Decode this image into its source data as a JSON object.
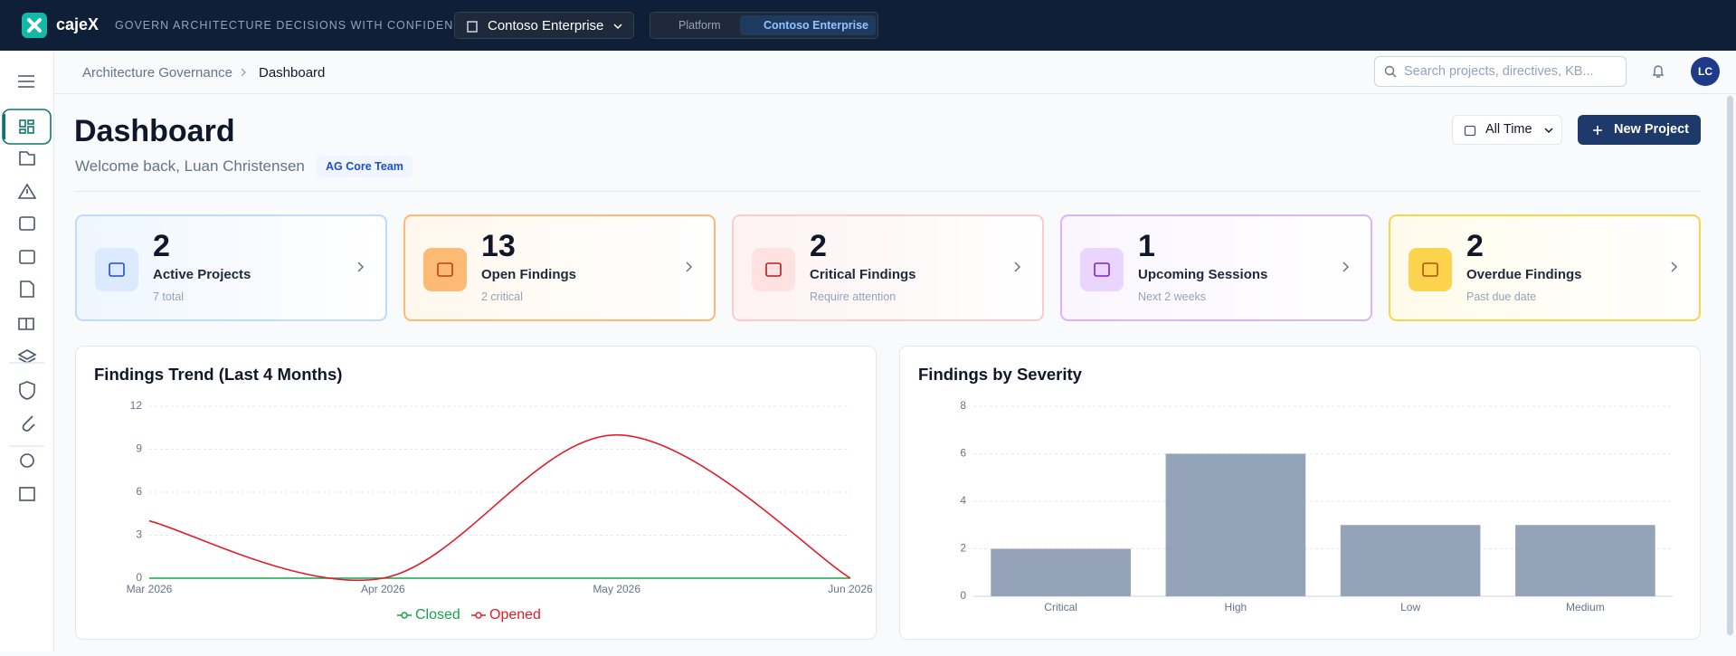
{
  "header": {
    "brand": "cajeX",
    "tagline": "GOVERN ARCHITECTURE DECISIONS WITH CONFIDENCE",
    "org": "Contoso Enterprise",
    "scope": [
      "Platform",
      "Contoso Enterprise"
    ]
  },
  "breadcrumb": [
    "Architecture Governance",
    "Dashboard"
  ],
  "search_placeholder": "Search projects, directives, KB...",
  "user_initials": "LC",
  "page": {
    "title": "Dashboard",
    "welcome": "Welcome back, Luan Christensen",
    "team": "AG Core Team",
    "range": "All Time",
    "new_project": "New Project"
  },
  "stats": [
    {
      "value": 2,
      "label": "Active Projects",
      "sub": "7 total"
    },
    {
      "value": 13,
      "label": "Open Findings",
      "sub": "2 critical"
    },
    {
      "value": 2,
      "label": "Critical Findings",
      "sub": "Require attention"
    },
    {
      "value": 1,
      "label": "Upcoming Sessions",
      "sub": "Next 2 weeks"
    },
    {
      "value": 2,
      "label": "Overdue Findings",
      "sub": "Past due date"
    }
  ],
  "chart_data": [
    {
      "type": "line",
      "title": "Findings Trend (Last 4 Months)",
      "categories": [
        "Mar 2026",
        "Apr 2026",
        "May 2026",
        "Jun 2026"
      ],
      "series": [
        {
          "name": "Closed",
          "color": "#16a34a",
          "values": [
            0,
            0,
            0,
            0
          ]
        },
        {
          "name": "Opened",
          "color": "#e11d2a",
          "values": [
            4,
            0,
            10,
            0
          ]
        }
      ],
      "ylim": [
        0,
        12
      ],
      "yticks": [
        0,
        3,
        6,
        9,
        12
      ],
      "grid": true
    },
    {
      "type": "bar",
      "title": "Findings by Severity",
      "categories": [
        "Critical",
        "High",
        "Low",
        "Medium"
      ],
      "values": [
        2,
        6,
        3,
        3
      ],
      "color": "#94a3b8",
      "ylim": [
        0,
        8
      ],
      "yticks": [
        0,
        2,
        4,
        6,
        8
      ],
      "grid": true
    }
  ]
}
